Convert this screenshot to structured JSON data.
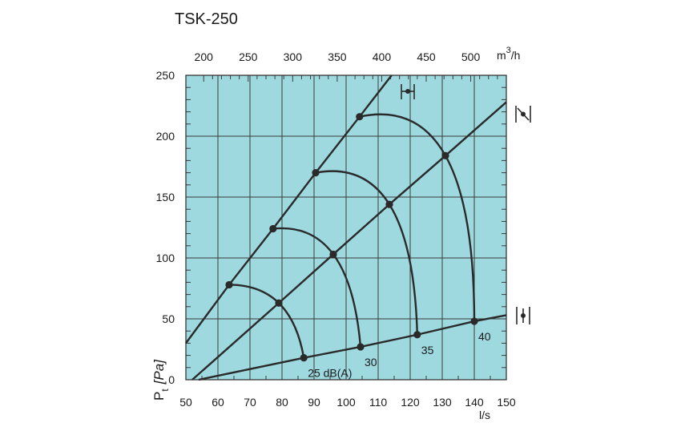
{
  "chart_data": {
    "type": "line",
    "title": "TSK-250",
    "xlabel": "l/s",
    "ylabel": "Pt [Pa]",
    "ylabel_main": "P",
    "ylabel_sub": "t",
    "ylabel_unit": "[Pa]",
    "x2label": "m³/h",
    "x2label_main": "m",
    "x2label_sup": "3",
    "x2label_rest": "/h",
    "xlim": [
      50,
      150
    ],
    "ylim": [
      0,
      250
    ],
    "x2lim": [
      180,
      540
    ],
    "xticks": [
      50,
      60,
      70,
      80,
      90,
      100,
      110,
      120,
      130,
      140,
      150
    ],
    "yticks": [
      0,
      50,
      100,
      150,
      200,
      250
    ],
    "x2ticks": [
      200,
      250,
      300,
      350,
      400,
      450,
      500
    ],
    "grid": true,
    "background_color": "#9ed9df",
    "line_color": "#2a2a2a",
    "series": [
      {
        "x": [
          50,
          63.5,
          77.2,
          90.5,
          104.2,
          114.2
        ],
        "y": [
          30,
          78,
          124,
          170,
          216,
          250
        ]
      },
      {
        "x": [
          52,
          79,
          96,
          113.5,
          131,
          150
        ],
        "y": [
          0,
          63,
          103,
          144,
          184,
          228
        ]
      },
      {
        "x": [
          54,
          86.8,
          104.5,
          122.2,
          140,
          150
        ],
        "y": [
          0,
          18,
          27,
          37,
          48,
          53
        ]
      }
    ],
    "sound_curves": [
      {
        "label": "25 dB(A)",
        "points": [
          [
            63.5,
            78
          ],
          [
            79,
            63
          ],
          [
            86.8,
            18
          ]
        ]
      },
      {
        "label": "30",
        "points": [
          [
            77.2,
            124
          ],
          [
            96,
            103
          ],
          [
            104.5,
            27
          ]
        ]
      },
      {
        "label": "35",
        "points": [
          [
            90.5,
            170
          ],
          [
            113.5,
            144
          ],
          [
            122.2,
            37
          ]
        ]
      },
      {
        "label": "40",
        "points": [
          [
            104.2,
            216
          ],
          [
            131,
            184
          ],
          [
            140,
            48
          ]
        ]
      }
    ],
    "damper_icons": [
      "damper-closed-icon",
      "damper-half-open-icon",
      "damper-open-icon"
    ]
  }
}
